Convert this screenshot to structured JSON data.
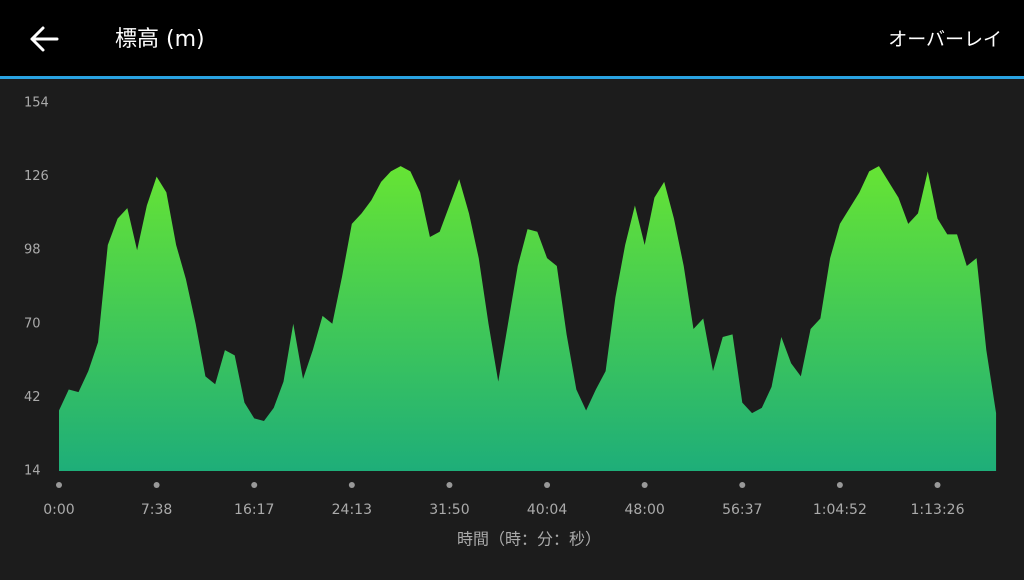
{
  "header": {
    "title": "標高 (m)",
    "action": "オーバーレイ"
  },
  "chart_data": {
    "type": "area",
    "x_label": "時間（時：分：秒）",
    "colors": [
      "#66e434",
      "#1eae79"
    ],
    "xlim": [
      0,
      9.63
    ],
    "xticks": [
      {
        "value": 0,
        "label": "0:00"
      },
      {
        "value": 1,
        "label": "7:38"
      },
      {
        "value": 2,
        "label": "16:17"
      },
      {
        "value": 3,
        "label": "24:13"
      },
      {
        "value": 4,
        "label": "31:50"
      },
      {
        "value": 5,
        "label": "40:04"
      },
      {
        "value": 6,
        "label": "48:00"
      },
      {
        "value": 7,
        "label": "56:37"
      },
      {
        "value": 8,
        "label": "1:04:52"
      },
      {
        "value": 9,
        "label": "1:13:26"
      }
    ],
    "ylim": [
      14,
      154
    ],
    "yticks": [
      14,
      42,
      70,
      98,
      126,
      154
    ],
    "x": [
      0,
      0.1,
      0.2,
      0.3,
      0.4,
      0.5,
      0.6,
      0.7,
      0.8,
      0.9,
      1,
      1.1,
      1.2,
      1.3,
      1.4,
      1.5,
      1.6,
      1.7,
      1.8,
      1.9,
      2,
      2.1,
      2.2,
      2.3,
      2.4,
      2.5,
      2.6,
      2.7,
      2.8,
      2.9,
      3,
      3.1,
      3.2,
      3.3,
      3.4,
      3.5,
      3.6,
      3.7,
      3.8,
      3.9,
      4,
      4.1,
      4.2,
      4.3,
      4.4,
      4.5,
      4.6,
      4.7,
      4.8,
      4.9,
      5,
      5.1,
      5.2,
      5.3,
      5.4,
      5.5,
      5.6,
      5.7,
      5.8,
      5.9,
      6,
      6.1,
      6.2,
      6.3,
      6.4,
      6.5,
      6.6,
      6.7,
      6.8,
      6.9,
      7,
      7.1,
      7.2,
      7.3,
      7.4,
      7.5,
      7.6,
      7.7,
      7.8,
      7.9,
      8,
      8.1,
      8.2,
      8.3,
      8.4,
      8.5,
      8.6,
      8.7,
      8.8,
      8.9,
      9,
      9.1,
      9.2,
      9.3,
      9.4,
      9.5,
      9.6
    ],
    "values": [
      37,
      45,
      44,
      52,
      63,
      100,
      110,
      114,
      98,
      115,
      126,
      120,
      100,
      87,
      70,
      50,
      47,
      60,
      58,
      40,
      34,
      33,
      38,
      48,
      70,
      49,
      60,
      73,
      70,
      88,
      108,
      112,
      117,
      124,
      128,
      130,
      128,
      120,
      103,
      105,
      115,
      125,
      112,
      95,
      70,
      48,
      70,
      92,
      106,
      105,
      95,
      92,
      66,
      45,
      37,
      45,
      52,
      80,
      100,
      115,
      100,
      118,
      124,
      110,
      92,
      68,
      72,
      52,
      65,
      66,
      40,
      36,
      38,
      46,
      65,
      55,
      50,
      68,
      72,
      95,
      108,
      114,
      120,
      128,
      130,
      124,
      118,
      108,
      112,
      128,
      110,
      104,
      104,
      92,
      95,
      60,
      36
    ]
  }
}
